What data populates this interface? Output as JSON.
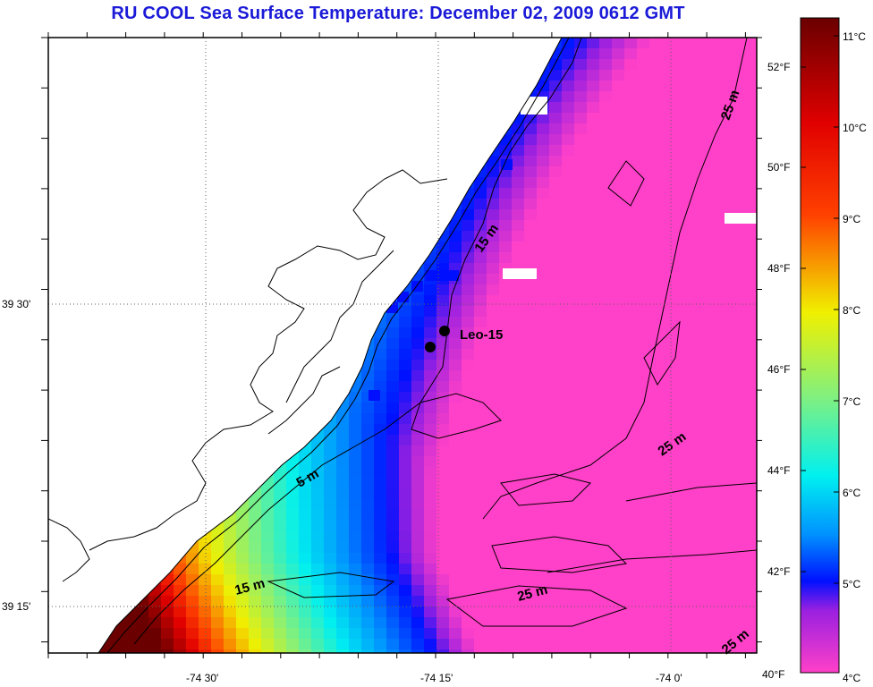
{
  "title": "RU COOL  Sea Surface Temperature:  December 02, 2009 0612 GMT",
  "map": {
    "lon_labels": [
      "-74 30'",
      "-74 15'",
      "-74 0'"
    ],
    "lat_labels": [
      "39 30'",
      "39 15'"
    ],
    "station": {
      "label": "Leo-15",
      "marker": "filled-circle"
    },
    "contour_labels": [
      "15 m",
      "5 m",
      "25 m",
      "15 m",
      "25 m",
      "25 m",
      "25 m"
    ]
  },
  "colorbar": {
    "celsius_labels": [
      "11°C",
      "10°C",
      "9°C",
      "8°C",
      "7°C",
      "6°C",
      "5°C",
      "4°C"
    ],
    "fahrenheit_labels": [
      "52°F",
      "50°F",
      "48°F",
      "46°F",
      "44°F",
      "42°F",
      "40°F"
    ],
    "colors": {
      "c4": "#ff40c8",
      "c4_5": "#9a20e0",
      "c5": "#0010ff",
      "c6": "#0090ff",
      "c7": "#00f0f0",
      "c8": "#80f080",
      "c9": "#f0f000",
      "c10": "#ff4000",
      "c10_5": "#e00000",
      "c11": "#6a0000"
    }
  }
}
